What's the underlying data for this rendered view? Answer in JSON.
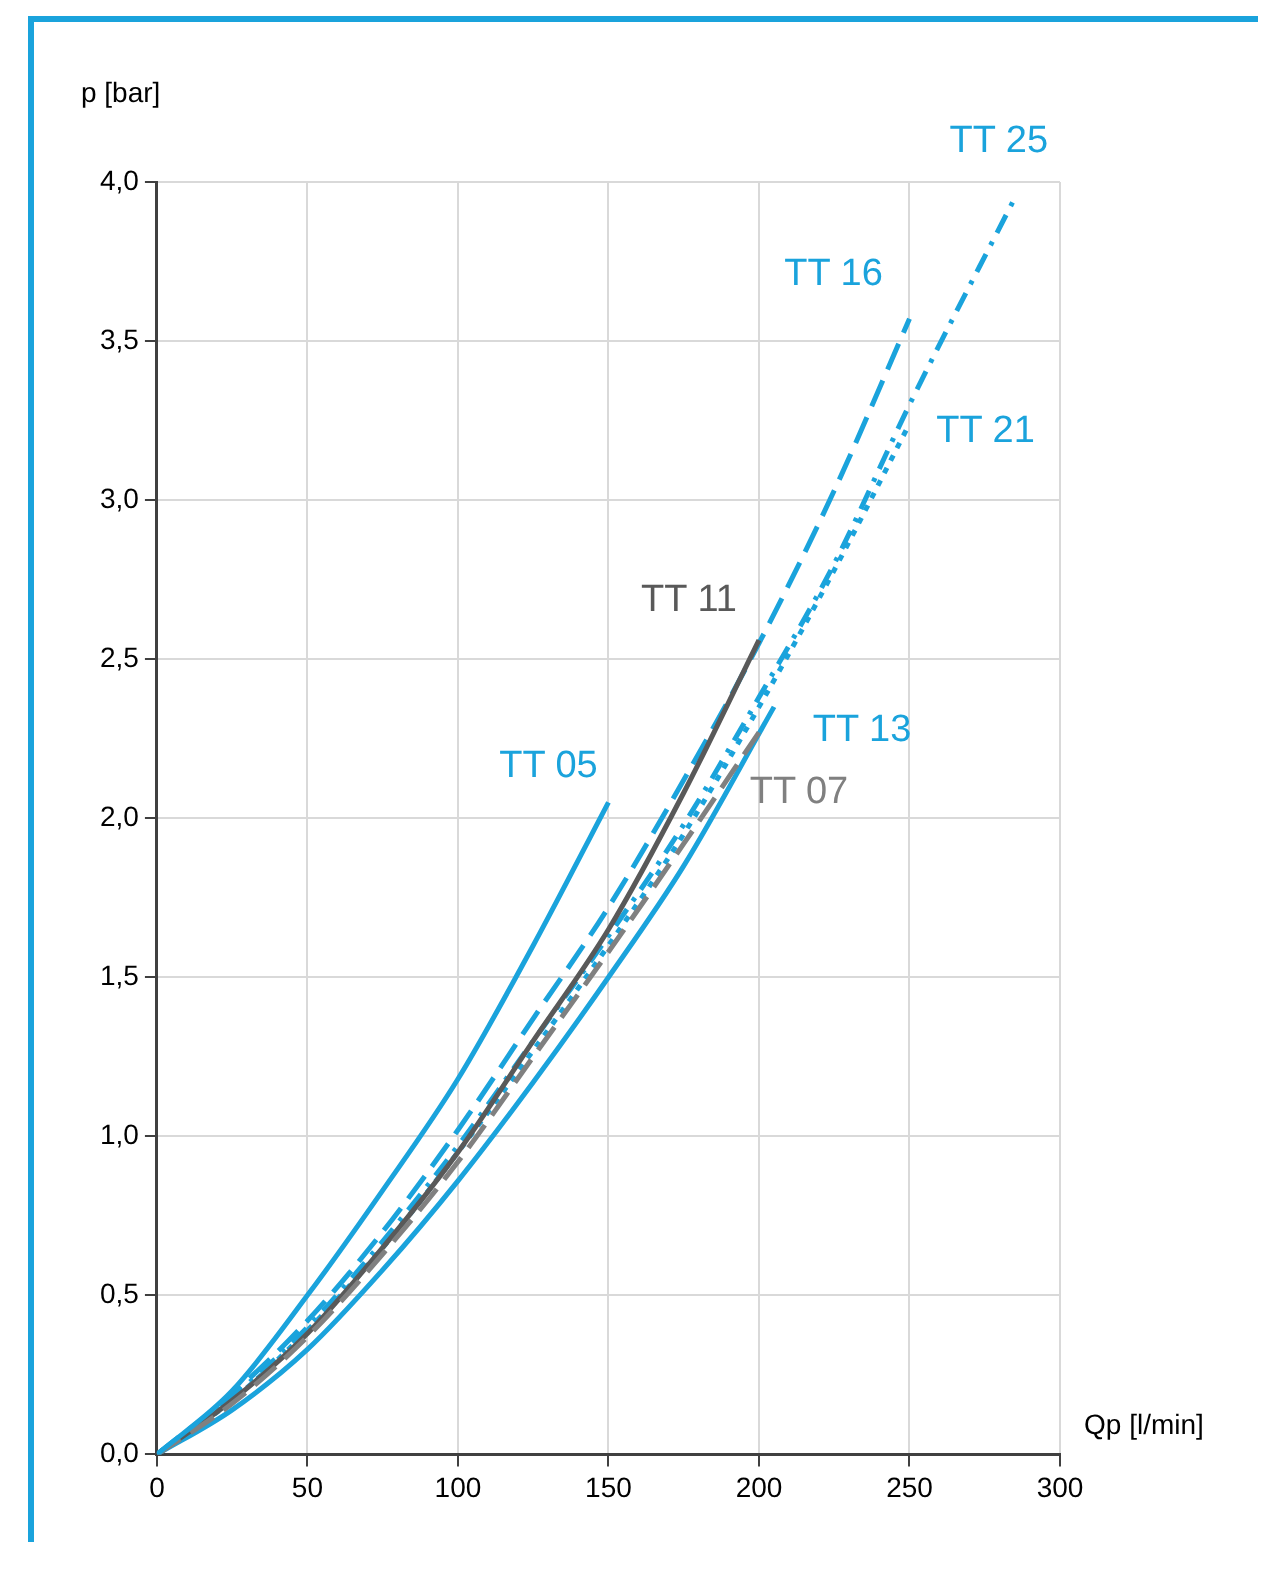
{
  "chart_data": {
    "type": "line",
    "xlabel": "Qp [l/min]",
    "ylabel": "p [bar]",
    "xlim": [
      0,
      300
    ],
    "xticks": [
      0,
      50,
      100,
      150,
      200,
      250,
      300
    ],
    "ylim": [
      0,
      4
    ],
    "yticks": [
      {
        "value": 0,
        "label": "0,0"
      },
      {
        "value": 0.5,
        "label": "0,5"
      },
      {
        "value": 1,
        "label": "1,0"
      },
      {
        "value": 1.5,
        "label": "1,5"
      },
      {
        "value": 2,
        "label": "2,0"
      },
      {
        "value": 2.5,
        "label": "2,5"
      },
      {
        "value": 3,
        "label": "3,0"
      },
      {
        "value": 3.5,
        "label": "3,5"
      },
      {
        "value": 4,
        "label": "4,0"
      }
    ],
    "grid": true,
    "legend": false,
    "marker": "none",
    "series": [
      {
        "name": "TT 05",
        "color": "#1aa3dc",
        "line_style": "solid",
        "x": [
          0,
          25,
          50,
          75,
          100,
          125,
          150
        ],
        "values": [
          0,
          0.2,
          0.5,
          0.83,
          1.18,
          1.6,
          2.05
        ]
      },
      {
        "name": "TT 07",
        "color": "#808080",
        "line_style": "dashed",
        "x": [
          0,
          25,
          50,
          75,
          100,
          125,
          150,
          175,
          200
        ],
        "values": [
          0,
          0.16,
          0.37,
          0.63,
          0.92,
          1.25,
          1.58,
          1.92,
          2.27
        ]
      },
      {
        "name": "TT 11",
        "color": "#595959",
        "line_style": "solid",
        "x": [
          0,
          25,
          50,
          75,
          100,
          125,
          150,
          175,
          200
        ],
        "values": [
          0,
          0.17,
          0.38,
          0.65,
          0.95,
          1.3,
          1.65,
          2.08,
          2.56
        ]
      },
      {
        "name": "TT 13",
        "color": "#1aa3dc",
        "line_style": "solid",
        "x": [
          0,
          25,
          50,
          75,
          100,
          125,
          150,
          175,
          205
        ],
        "values": [
          0,
          0.14,
          0.33,
          0.58,
          0.86,
          1.17,
          1.5,
          1.85,
          2.35
        ]
      },
      {
        "name": "TT 16",
        "color": "#1aa3dc",
        "line_style": "dashed",
        "x": [
          0,
          25,
          50,
          75,
          100,
          125,
          150,
          175,
          200,
          225,
          250
        ],
        "values": [
          0,
          0.19,
          0.42,
          0.7,
          1.02,
          1.37,
          1.72,
          2.12,
          2.55,
          3.03,
          3.57
        ]
      },
      {
        "name": "TT 21",
        "color": "#1aa3dc",
        "line_style": "dotted",
        "x": [
          0,
          25,
          50,
          75,
          100,
          125,
          150,
          175,
          200,
          225,
          250
        ],
        "values": [
          0,
          0.17,
          0.39,
          0.65,
          0.95,
          1.27,
          1.6,
          1.95,
          2.35,
          2.78,
          3.24
        ]
      },
      {
        "name": "TT 25",
        "color": "#1aa3dc",
        "line_style": "dashdot",
        "x": [
          0,
          25,
          50,
          75,
          100,
          125,
          150,
          175,
          200,
          225,
          250,
          285
        ],
        "values": [
          0,
          0.18,
          0.4,
          0.67,
          0.97,
          1.3,
          1.63,
          1.98,
          2.38,
          2.8,
          3.3,
          3.95
        ]
      }
    ]
  }
}
